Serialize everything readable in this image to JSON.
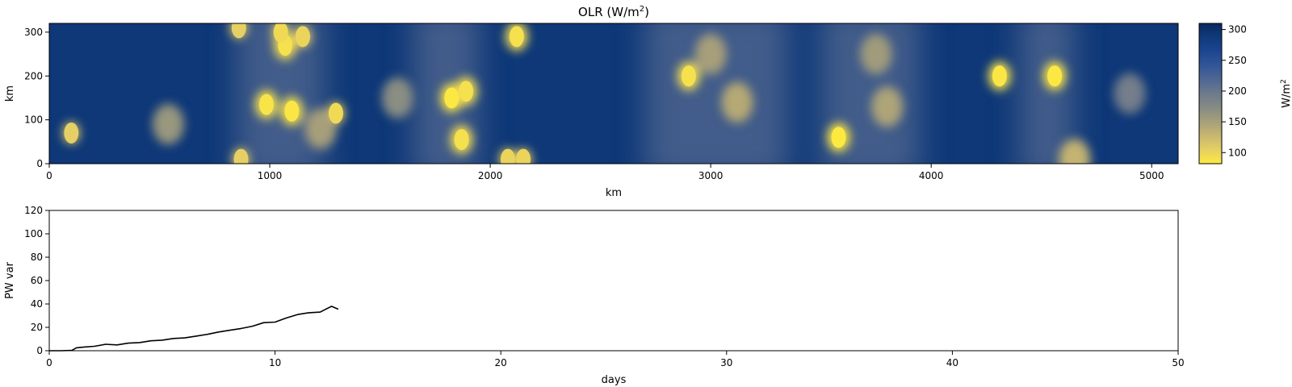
{
  "chart_data": [
    {
      "type": "heatmap",
      "title": "OLR (W/m",
      "title_sup": "2",
      "title_end": ")",
      "xlabel": "km",
      "ylabel": "km",
      "xlim": [
        0,
        5120
      ],
      "ylim": [
        0,
        320
      ],
      "xticks": [
        "0",
        "1000",
        "2000",
        "3000",
        "4000",
        "5000"
      ],
      "yticks": [
        "0",
        "100",
        "200",
        "300"
      ],
      "colorbar": {
        "label": "W/m",
        "label_sup": "2",
        "range": [
          82,
          310
        ],
        "ticks": [
          "100",
          "150",
          "200",
          "250",
          "300"
        ],
        "colors": [
          "#fde940",
          "#e6cf64",
          "#c8b670",
          "#a69f7a",
          "#868b84",
          "#6d7a8c",
          "#4f6793",
          "#335597",
          "#1d4690",
          "#0f3a7c",
          "#0a2a5e"
        ]
      },
      "background_olr": 290,
      "convective_bands_km": [
        [
          850,
          1250
        ],
        [
          2700,
          3350
        ],
        [
          3500,
          3950
        ],
        [
          4400,
          4650
        ],
        [
          1650,
          1950
        ]
      ],
      "convective_cells": [
        {
          "x": 1070,
          "y": 270,
          "olr": 95
        },
        {
          "x": 1150,
          "y": 290,
          "olr": 105
        },
        {
          "x": 1100,
          "y": 120,
          "olr": 90
        },
        {
          "x": 985,
          "y": 135,
          "olr": 92
        },
        {
          "x": 1825,
          "y": 150,
          "olr": 88
        },
        {
          "x": 1890,
          "y": 165,
          "olr": 95
        },
        {
          "x": 1050,
          "y": 300,
          "olr": 100
        },
        {
          "x": 2120,
          "y": 290,
          "olr": 95
        },
        {
          "x": 3580,
          "y": 60,
          "olr": 85
        },
        {
          "x": 4310,
          "y": 200,
          "olr": 90
        },
        {
          "x": 4560,
          "y": 200,
          "olr": 88
        },
        {
          "x": 2900,
          "y": 200,
          "olr": 95
        },
        {
          "x": 100,
          "y": 70,
          "olr": 110
        },
        {
          "x": 1300,
          "y": 115,
          "olr": 100
        },
        {
          "x": 1870,
          "y": 55,
          "olr": 95
        },
        {
          "x": 2080,
          "y": 10,
          "olr": 105
        },
        {
          "x": 2150,
          "y": 10,
          "olr": 105
        },
        {
          "x": 3120,
          "y": 140,
          "olr": 140
        },
        {
          "x": 3000,
          "y": 250,
          "olr": 150
        },
        {
          "x": 3800,
          "y": 130,
          "olr": 145
        },
        {
          "x": 3750,
          "y": 250,
          "olr": 155
        },
        {
          "x": 1230,
          "y": 80,
          "olr": 150
        },
        {
          "x": 860,
          "y": 310,
          "olr": 110
        },
        {
          "x": 870,
          "y": 10,
          "olr": 110
        },
        {
          "x": 4650,
          "y": 10,
          "olr": 130
        },
        {
          "x": 540,
          "y": 90,
          "olr": 160
        },
        {
          "x": 1580,
          "y": 150,
          "olr": 170
        },
        {
          "x": 4900,
          "y": 160,
          "olr": 190
        }
      ]
    },
    {
      "type": "line",
      "title": "",
      "xlabel": "days",
      "ylabel": "PW var",
      "xlim": [
        0,
        50
      ],
      "ylim": [
        0,
        120
      ],
      "xticks": [
        "0",
        "10",
        "20",
        "30",
        "40",
        "50"
      ],
      "yticks": [
        "0",
        "20",
        "40",
        "60",
        "80",
        "100",
        "120"
      ],
      "series": [
        {
          "name": "PW var",
          "color": "#000000",
          "x": [
            0,
            0.5,
            1.0,
            1.2,
            1.5,
            2.0,
            2.5,
            3.0,
            3.5,
            4.0,
            4.5,
            5.0,
            5.5,
            6.0,
            6.5,
            7.0,
            7.5,
            8.0,
            8.5,
            9.0,
            9.5,
            10.0,
            10.5,
            11.0,
            11.5,
            12.0,
            12.5,
            12.8
          ],
          "y": [
            0,
            0,
            0.3,
            2.5,
            3.0,
            3.8,
            5.5,
            5.0,
            6.5,
            7.0,
            8.5,
            9.0,
            10.5,
            11.0,
            12.5,
            14.0,
            16.0,
            17.5,
            19.0,
            21.0,
            24.0,
            24.5,
            28.0,
            31.0,
            32.5,
            33.0,
            38.0,
            35.5
          ]
        }
      ]
    }
  ]
}
